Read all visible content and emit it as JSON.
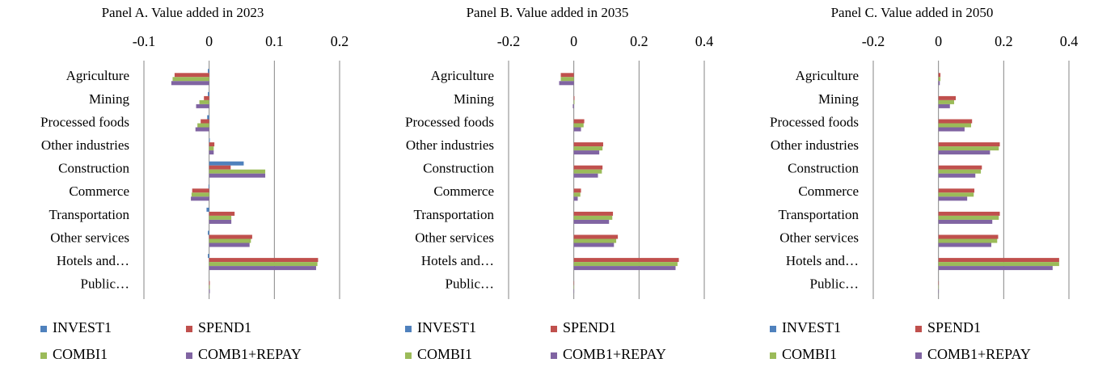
{
  "chart_data": [
    {
      "type": "bar",
      "orientation": "horizontal",
      "title": "Panel A. Value added in 2023",
      "categories": [
        "Agriculture",
        "Mining",
        "Processed foods",
        "Other industries",
        "Construction",
        "Commerce",
        "Transportation",
        "Other services",
        "Hotels and…",
        "Public…"
      ],
      "series": [
        {
          "name": "INVEST1",
          "color": "#4f81bd",
          "values": [
            -0.002,
            -0.002,
            -0.003,
            0.001,
            0.053,
            -0.001,
            -0.004,
            -0.002,
            -0.002,
            0.0
          ]
        },
        {
          "name": "SPEND1",
          "color": "#c0504d",
          "values": [
            -0.053,
            -0.008,
            -0.013,
            0.008,
            0.033,
            -0.026,
            0.039,
            0.066,
            0.167,
            0.001
          ]
        },
        {
          "name": "COMBI1",
          "color": "#9bbb59",
          "values": [
            -0.056,
            -0.015,
            -0.018,
            0.007,
            0.086,
            -0.027,
            0.034,
            0.064,
            0.166,
            0.001
          ]
        },
        {
          "name": "COMB1+REPAY",
          "color": "#8064a2",
          "values": [
            -0.058,
            -0.02,
            -0.021,
            0.007,
            0.086,
            -0.028,
            0.034,
            0.062,
            0.164,
            0.001
          ]
        }
      ],
      "xlim": [
        -0.1,
        0.2
      ],
      "xticks": [
        -0.1,
        0,
        0.1,
        0.2
      ],
      "grid": true,
      "legend": "bottom"
    },
    {
      "type": "bar",
      "orientation": "horizontal",
      "title": "Panel B. Value added in 2035",
      "categories": [
        "Agriculture",
        "Mining",
        "Processed foods",
        "Other industries",
        "Construction",
        "Commerce",
        "Transportation",
        "Other services",
        "Hotels and…",
        "Public…"
      ],
      "series": [
        {
          "name": "INVEST1",
          "color": "#4f81bd",
          "values": [
            0.0,
            0.0,
            0.0,
            0.0,
            0.0,
            0.0,
            0.0,
            0.0,
            0.0,
            0.0
          ]
        },
        {
          "name": "SPEND1",
          "color": "#c0504d",
          "values": [
            -0.04,
            0.002,
            0.032,
            0.09,
            0.088,
            0.022,
            0.12,
            0.135,
            0.322,
            0.001
          ]
        },
        {
          "name": "COMBI1",
          "color": "#9bbb59",
          "values": [
            -0.04,
            0.002,
            0.03,
            0.088,
            0.086,
            0.02,
            0.118,
            0.13,
            0.318,
            0.001
          ]
        },
        {
          "name": "COMB1+REPAY",
          "color": "#8064a2",
          "values": [
            -0.045,
            -0.003,
            0.022,
            0.078,
            0.074,
            0.012,
            0.108,
            0.123,
            0.312,
            0.001
          ]
        }
      ],
      "xlim": [
        -0.2,
        0.4
      ],
      "xticks": [
        -0.2,
        0,
        0.2,
        0.4
      ],
      "grid": true,
      "legend": "bottom"
    },
    {
      "type": "bar",
      "orientation": "horizontal",
      "title": "Panel C. Value added in 2050",
      "categories": [
        "Agriculture",
        "Mining",
        "Processed foods",
        "Other industries",
        "Construction",
        "Commerce",
        "Transportation",
        "Other services",
        "Hotels and…",
        "Public…"
      ],
      "series": [
        {
          "name": "INVEST1",
          "color": "#4f81bd",
          "values": [
            0.0,
            0.0,
            0.0,
            0.0,
            0.0,
            0.0,
            0.0,
            0.0,
            0.0,
            0.0
          ]
        },
        {
          "name": "SPEND1",
          "color": "#c0504d",
          "values": [
            0.006,
            0.053,
            0.103,
            0.188,
            0.133,
            0.11,
            0.188,
            0.183,
            0.37,
            0.001
          ]
        },
        {
          "name": "COMBI1",
          "color": "#9bbb59",
          "values": [
            0.006,
            0.048,
            0.1,
            0.185,
            0.13,
            0.108,
            0.185,
            0.18,
            0.37,
            0.001
          ]
        },
        {
          "name": "COMB1+REPAY",
          "color": "#8064a2",
          "values": [
            0.004,
            0.035,
            0.08,
            0.158,
            0.113,
            0.088,
            0.165,
            0.162,
            0.35,
            0.001
          ]
        }
      ],
      "xlim": [
        -0.2,
        0.4
      ],
      "xticks": [
        -0.2,
        0,
        0.2,
        0.4
      ],
      "grid": true,
      "legend": "bottom"
    }
  ]
}
